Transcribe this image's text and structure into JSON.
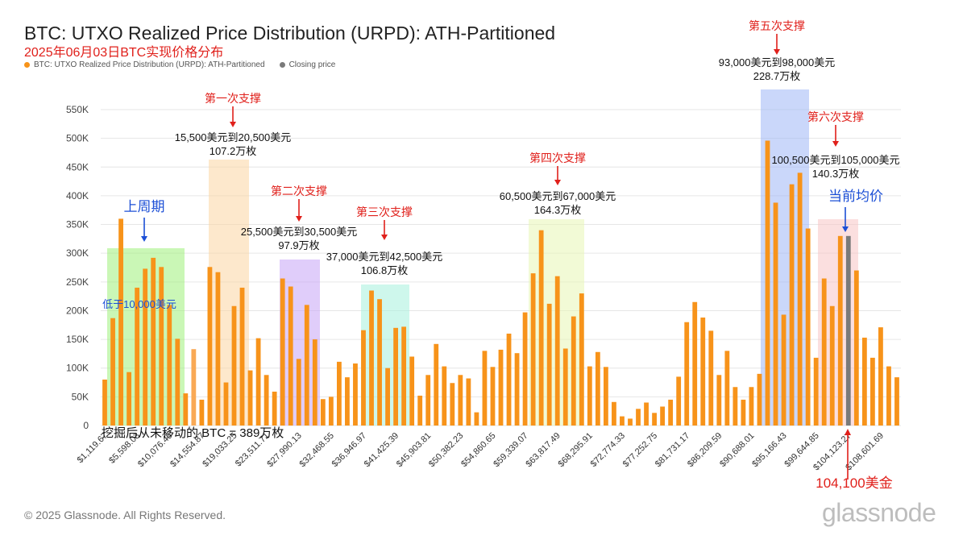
{
  "title": "BTC: UTXO Realized Price Distribution (URPD): ATH-Partitioned",
  "subtitle": "2025年06月03日BTC实现价格分布",
  "legend": [
    {
      "label": "BTC: UTXO Realized Price Distribution (URPD): ATH-Partitioned",
      "color": "#f7931a"
    },
    {
      "label": "Closing price",
      "color": "#7a7a7a"
    }
  ],
  "copyright": "© 2025 Glassnode. All Rights Reserved.",
  "brand": "glassnode",
  "chart_data": {
    "type": "bar",
    "ylim": [
      0,
      550000
    ],
    "yticks": [
      "0",
      "50K",
      "100K",
      "150K",
      "200K",
      "250K",
      "300K",
      "350K",
      "400K",
      "450K",
      "500K",
      "550K"
    ],
    "grid": true,
    "x_tick_labels": [
      "$1,119.67",
      "$5,598.03",
      "$10,076.45",
      "$14,554.87",
      "$19,033.25",
      "$23,511.71",
      "$27,990.13",
      "$32,468.55",
      "$36,946.97",
      "$41,425.39",
      "$45,903.81",
      "$50,382.23",
      "$54,860.65",
      "$59,339.07",
      "$63,817.49",
      "$68,295.91",
      "$72,774.33",
      "$77,252.75",
      "$81,731.17",
      "$86,209.59",
      "$90,688.01",
      "$95,166.43",
      "$99,644.85",
      "$104,123.27",
      "$108,601.69"
    ],
    "values": [
      80000,
      187000,
      360000,
      93000,
      240000,
      273000,
      292000,
      276000,
      210000,
      151000,
      56000,
      133000,
      45000,
      276000,
      267000,
      75000,
      208000,
      240000,
      96000,
      152000,
      88000,
      59000,
      256000,
      242000,
      116000,
      210000,
      150000,
      46000,
      50000,
      111000,
      84000,
      108000,
      166000,
      235000,
      220000,
      100000,
      170000,
      172000,
      120000,
      52000,
      88000,
      142000,
      103000,
      74000,
      88000,
      82000,
      23000,
      130000,
      102000,
      132000,
      160000,
      126000,
      197000,
      265000,
      340000,
      212000,
      260000,
      134000,
      190000,
      230000,
      103000,
      128000,
      102000,
      41000,
      16000,
      12000,
      29000,
      40000,
      22000,
      33000,
      45000,
      85000,
      180000,
      215000,
      188000,
      165000,
      88000,
      130000,
      67000,
      45000,
      67000,
      90000,
      496000,
      388000,
      193000,
      420000,
      440000,
      343000,
      118000,
      256000,
      208000,
      330000,
      330000,
      270000,
      153000,
      118000,
      171000,
      103000,
      84000
    ],
    "closing_price": {
      "label": "104,100美金",
      "value": 104100
    },
    "highlights": [
      {
        "label": "上周期",
        "sublabel": "低于10,000美元",
        "color": "#9ef07a"
      },
      {
        "label": "第一次支撑",
        "range": "15,500美元到20,500美元",
        "amount": "107.2万枚",
        "color": "#fcd5a3"
      },
      {
        "label": "第二次支撑",
        "range": "25,500美元到30,500美元",
        "amount": "97.9万枚",
        "color": "#c7a4f5"
      },
      {
        "label": "第三次支撑",
        "range": "37,000美元到42,500美元",
        "amount": "106.8万枚",
        "color": "#a6f0dd"
      },
      {
        "label": "第四次支撑",
        "range": "60,500美元到67,000美元",
        "amount": "164.3万枚",
        "color": "#e8f5b5"
      },
      {
        "label": "第五次支撑",
        "range": "93,000美元到98,000美元",
        "amount": "228.7万枚",
        "color": "#9fb6f6"
      },
      {
        "label": "第六次支撑",
        "range": "100,500美元到105,000美元",
        "amount": "140.3万枚",
        "color": "#f8c4c4"
      },
      {
        "label": "当前均价",
        "color": "#1c4fd6"
      }
    ],
    "annotation": "挖掘后从未移动的 BTC = 389万枚"
  }
}
